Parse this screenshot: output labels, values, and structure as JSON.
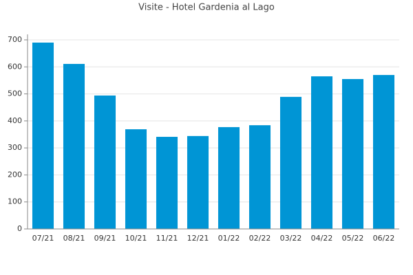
{
  "chart_data": {
    "type": "bar",
    "title": "Visite - Hotel Gardenia al Lago",
    "categories": [
      "07/21",
      "08/21",
      "09/21",
      "10/21",
      "11/21",
      "12/21",
      "01/22",
      "02/22",
      "03/22",
      "04/22",
      "05/22",
      "06/22"
    ],
    "values": [
      690,
      611,
      494,
      369,
      341,
      344,
      377,
      384,
      489,
      565,
      555,
      570
    ],
    "color": "#0095d5",
    "ylim": [
      0,
      700
    ],
    "yticks": [
      0,
      100,
      200,
      300,
      400,
      500,
      600,
      700
    ],
    "grid": true
  }
}
